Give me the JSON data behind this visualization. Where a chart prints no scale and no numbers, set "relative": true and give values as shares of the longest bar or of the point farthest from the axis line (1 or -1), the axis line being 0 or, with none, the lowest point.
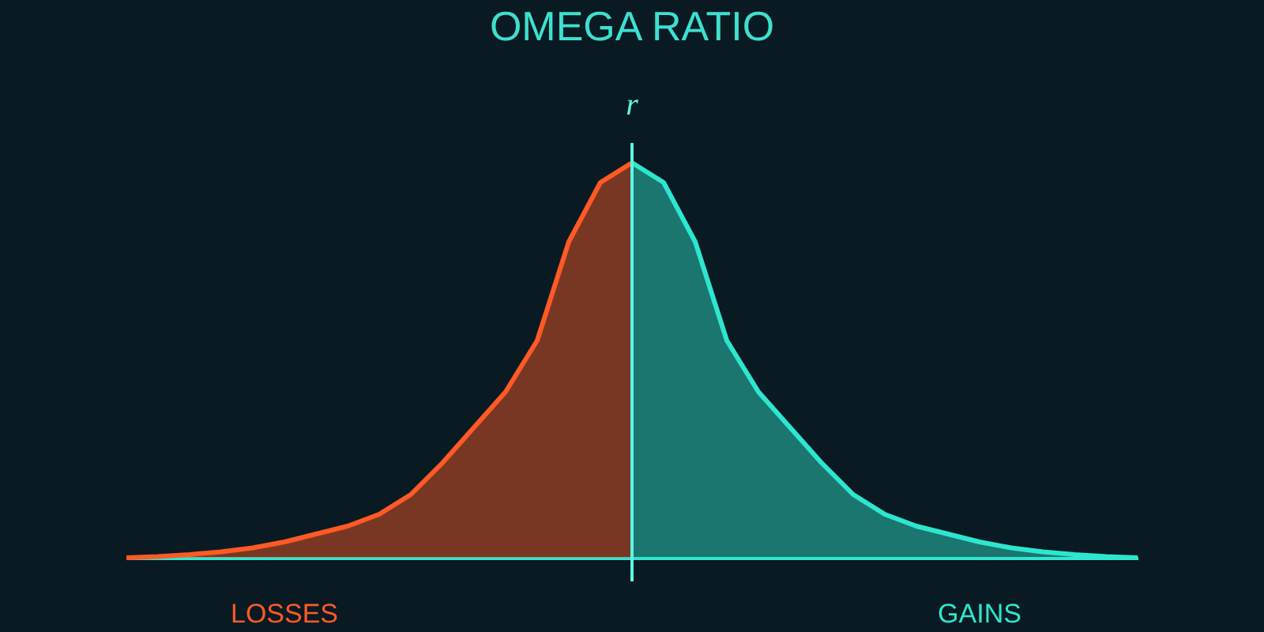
{
  "chart_data": {
    "type": "area",
    "title": "OMEGA RATIO",
    "relative": true,
    "categories": [
      null,
      null,
      null,
      null,
      null,
      null,
      null,
      null,
      null,
      null,
      null,
      null,
      null,
      null,
      null,
      null,
      null,
      null,
      null,
      null,
      null,
      null,
      null,
      null,
      null,
      null,
      null,
      null,
      null,
      null,
      null,
      null,
      null
    ],
    "series": [
      {
        "name": "LOSSES",
        "color": "#ff5a26",
        "values": [
          0,
          0.003,
          0.008,
          0.015,
          0.025,
          0.04,
          0.06,
          0.08,
          0.11,
          0.16,
          0.24,
          0.33,
          0.42,
          0.55,
          0.8,
          0.95,
          1,
          null,
          null,
          null,
          null,
          null,
          null,
          null,
          null,
          null,
          null,
          null,
          null,
          null,
          null,
          null,
          null
        ]
      },
      {
        "name": "GAINS",
        "color": "#2ee6cf",
        "values": [
          null,
          null,
          null,
          null,
          null,
          null,
          null,
          null,
          null,
          null,
          null,
          null,
          null,
          null,
          null,
          null,
          1,
          0.95,
          0.8,
          0.55,
          0.42,
          0.33,
          0.24,
          0.16,
          0.11,
          0.08,
          0.06,
          0.04,
          0.025,
          0.015,
          0.008,
          0.003,
          0
        ]
      }
    ],
    "annotations": [
      "r"
    ]
  }
}
